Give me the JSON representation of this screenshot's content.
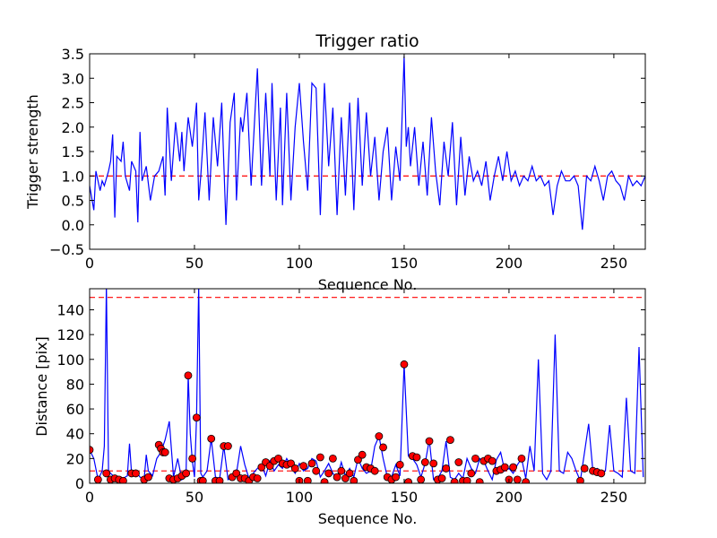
{
  "chart_data": [
    {
      "type": "line",
      "title": "Trigger ratio",
      "xlabel": "Sequence No.",
      "ylabel": "Trigger strength",
      "xlim": [
        0,
        265
      ],
      "ylim": [
        -0.5,
        3.5
      ],
      "xticks": [
        0,
        50,
        100,
        150,
        200,
        250
      ],
      "yticks": [
        -0.5,
        0.0,
        0.5,
        1.0,
        1.5,
        2.0,
        2.5,
        3.0,
        3.5
      ],
      "ytick_labels": [
        "−0.5",
        "0.0",
        "0.5",
        "1.0",
        "1.5",
        "2.0",
        "2.5",
        "3.0",
        "3.5"
      ],
      "threshold": 1.0,
      "colors": {
        "line": "#0000ff",
        "threshold": "#ff0000"
      },
      "series": [
        {
          "x": [
            0,
            2,
            3,
            5,
            6,
            7,
            9,
            10,
            11,
            12,
            13,
            15,
            16,
            17,
            19,
            20,
            22,
            23,
            24,
            25,
            27,
            29,
            31,
            33,
            35,
            36,
            37,
            39,
            41,
            43,
            44,
            45,
            47,
            49,
            51,
            52,
            53,
            55,
            57,
            59,
            61,
            63,
            65,
            67,
            69,
            70,
            72,
            73,
            75,
            77,
            79,
            80,
            82,
            84,
            86,
            87,
            89,
            91,
            92,
            94,
            96,
            98,
            100,
            102,
            104,
            106,
            108,
            110,
            112,
            114,
            116,
            118,
            120,
            122,
            124,
            126,
            128,
            130,
            132,
            134,
            136,
            138,
            140,
            142,
            144,
            146,
            148,
            150,
            151,
            152,
            153,
            155,
            157,
            159,
            161,
            163,
            165,
            167,
            169,
            171,
            173,
            175,
            177,
            179,
            181,
            183,
            185,
            187,
            189,
            191,
            193,
            195,
            197,
            199,
            201,
            203,
            205,
            207,
            209,
            211,
            213,
            215,
            217,
            219,
            221,
            223,
            225,
            227,
            229,
            231,
            233,
            235,
            237,
            239,
            241,
            243,
            245,
            247,
            249,
            251,
            253,
            255,
            257,
            259,
            261,
            263,
            265
          ],
          "y": [
            0.8,
            0.3,
            1.1,
            0.7,
            0.9,
            0.8,
            1.1,
            1.3,
            1.85,
            0.15,
            1.4,
            1.3,
            1.7,
            1.0,
            0.7,
            1.3,
            1.1,
            0.05,
            1.9,
            0.9,
            1.2,
            0.5,
            1.0,
            1.1,
            1.4,
            0.6,
            2.4,
            0.9,
            2.1,
            1.3,
            1.9,
            1.1,
            2.2,
            1.6,
            2.5,
            0.5,
            1.0,
            2.3,
            0.5,
            2.2,
            1.2,
            2.5,
            0.0,
            2.1,
            2.7,
            0.5,
            2.2,
            1.9,
            2.7,
            0.8,
            2.4,
            3.2,
            0.8,
            2.7,
            1.0,
            2.9,
            0.5,
            2.4,
            0.4,
            2.7,
            0.5,
            2.0,
            2.9,
            1.7,
            0.7,
            2.9,
            2.8,
            0.2,
            2.9,
            1.2,
            2.4,
            0.2,
            2.2,
            0.6,
            2.5,
            0.3,
            2.6,
            0.8,
            2.3,
            1.0,
            1.8,
            0.5,
            1.5,
            2.0,
            0.5,
            1.6,
            0.9,
            3.45,
            1.6,
            2.0,
            1.2,
            2.0,
            0.8,
            1.7,
            0.6,
            2.2,
            1.1,
            0.4,
            1.7,
            1.0,
            2.1,
            0.4,
            1.8,
            0.6,
            1.4,
            0.9,
            1.1,
            0.8,
            1.3,
            0.5,
            1.0,
            1.4,
            0.9,
            1.5,
            0.9,
            1.1,
            0.8,
            1.0,
            0.9,
            1.2,
            0.9,
            1.0,
            0.8,
            0.9,
            0.2,
            0.8,
            1.1,
            0.9,
            0.9,
            1.0,
            0.8,
            -0.1,
            1.0,
            0.9,
            1.2,
            0.9,
            0.5,
            1.0,
            1.1,
            0.9,
            0.8,
            0.5,
            1.0,
            0.8,
            0.9,
            0.8,
            1.0
          ]
        }
      ]
    },
    {
      "type": "line",
      "title": "",
      "xlabel": "Sequence No.",
      "ylabel": "Distance [pix]",
      "xlim": [
        0,
        265
      ],
      "ylim": [
        0,
        157
      ],
      "xticks": [
        0,
        50,
        100,
        150,
        200,
        250
      ],
      "yticks": [
        0,
        20,
        40,
        60,
        80,
        100,
        120,
        140
      ],
      "ytick_labels": [
        "0",
        "20",
        "40",
        "60",
        "80",
        "100",
        "120",
        "140"
      ],
      "thresholds": [
        10,
        150
      ],
      "colors": {
        "line": "#0000ff",
        "threshold": "#ff0000",
        "marker": "#ff0000"
      },
      "series": [
        {
          "x": [
            0,
            2,
            4,
            6,
            7,
            8,
            9,
            10,
            12,
            14,
            16,
            18,
            19,
            20,
            22,
            24,
            26,
            27,
            28,
            30,
            32,
            34,
            36,
            38,
            40,
            42,
            44,
            46,
            47,
            48,
            49,
            50,
            51,
            52,
            53,
            54,
            56,
            58,
            60,
            62,
            64,
            66,
            68,
            70,
            72,
            74,
            76,
            78,
            80,
            82,
            84,
            86,
            88,
            90,
            92,
            94,
            96,
            98,
            100,
            102,
            104,
            106,
            108,
            110,
            112,
            114,
            116,
            118,
            120,
            122,
            124,
            126,
            128,
            130,
            132,
            134,
            136,
            138,
            140,
            142,
            144,
            146,
            148,
            150,
            152,
            154,
            156,
            158,
            160,
            162,
            164,
            166,
            168,
            170,
            172,
            174,
            176,
            178,
            180,
            182,
            184,
            186,
            188,
            190,
            192,
            194,
            196,
            198,
            200,
            202,
            204,
            206,
            208,
            210,
            212,
            214,
            216,
            218,
            220,
            222,
            224,
            226,
            228,
            230,
            232,
            234,
            236,
            238,
            240,
            242,
            244,
            246,
            248,
            250,
            252,
            254,
            256,
            258,
            260,
            262,
            264
          ],
          "y": [
            27,
            20,
            3,
            10,
            30,
            160,
            10,
            8,
            5,
            3,
            4,
            6,
            32,
            8,
            10,
            5,
            3,
            23,
            10,
            6,
            20,
            25,
            35,
            50,
            5,
            20,
            3,
            8,
            87,
            40,
            18,
            5,
            53,
            160,
            8,
            5,
            10,
            36,
            5,
            4,
            30,
            3,
            5,
            8,
            30,
            15,
            4,
            8,
            12,
            15,
            6,
            18,
            10,
            15,
            12,
            20,
            14,
            8,
            16,
            10,
            12,
            20,
            18,
            5,
            10,
            16,
            8,
            4,
            17,
            6,
            12,
            5,
            20,
            12,
            8,
            10,
            30,
            38,
            20,
            5,
            5,
            15,
            6,
            96,
            22,
            20,
            15,
            5,
            16,
            35,
            3,
            4,
            10,
            34,
            5,
            3,
            8,
            4,
            20,
            12,
            8,
            20,
            18,
            10,
            3,
            19,
            25,
            10,
            12,
            8,
            15,
            20,
            4,
            30,
            10,
            100,
            8,
            3,
            10,
            120,
            10,
            8,
            25,
            20,
            10,
            2,
            25,
            48,
            10,
            12,
            8,
            10,
            47,
            10,
            8,
            5,
            69,
            10,
            8,
            110,
            5
          ]
        }
      ],
      "markers": {
        "x": [
          0,
          4,
          8,
          10,
          12,
          14,
          16,
          20,
          22,
          26,
          28,
          33,
          34,
          35,
          36,
          38,
          40,
          42,
          44,
          46,
          47,
          49,
          51,
          53,
          54,
          58,
          60,
          62,
          64,
          66,
          68,
          70,
          72,
          74,
          76,
          78,
          80,
          82,
          84,
          86,
          88,
          90,
          92,
          94,
          96,
          98,
          100,
          102,
          104,
          106,
          108,
          110,
          112,
          114,
          116,
          118,
          120,
          122,
          124,
          126,
          128,
          130,
          132,
          134,
          136,
          138,
          140,
          142,
          144,
          146,
          148,
          150,
          152,
          154,
          156,
          158,
          160,
          162,
          164,
          166,
          168,
          170,
          172,
          174,
          176,
          178,
          180,
          182,
          184,
          186,
          188,
          190,
          192,
          194,
          196,
          198,
          200,
          202,
          204,
          206,
          208,
          234,
          236,
          240,
          242,
          244
        ],
        "y": [
          27,
          3,
          8,
          3,
          4,
          3,
          2,
          8,
          8,
          3,
          5,
          31,
          28,
          25,
          25,
          4,
          3,
          4,
          6,
          8,
          87,
          20,
          53,
          2,
          2,
          36,
          2,
          2,
          30,
          30,
          5,
          8,
          4,
          4,
          2,
          5,
          4,
          13,
          17,
          14,
          18,
          20,
          16,
          15,
          16,
          12,
          2,
          14,
          2,
          16,
          10,
          21,
          1,
          8,
          20,
          5,
          10,
          4,
          8,
          2,
          19,
          23,
          13,
          12,
          10,
          38,
          29,
          5,
          3,
          5,
          15,
          96,
          1,
          22,
          21,
          3,
          17,
          34,
          16,
          3,
          4,
          12,
          35,
          1,
          17,
          2,
          2,
          8,
          20,
          1,
          18,
          20,
          18,
          10,
          11,
          13,
          3,
          13,
          3,
          20,
          1,
          2,
          12,
          10,
          9,
          8
        ]
      }
    }
  ]
}
